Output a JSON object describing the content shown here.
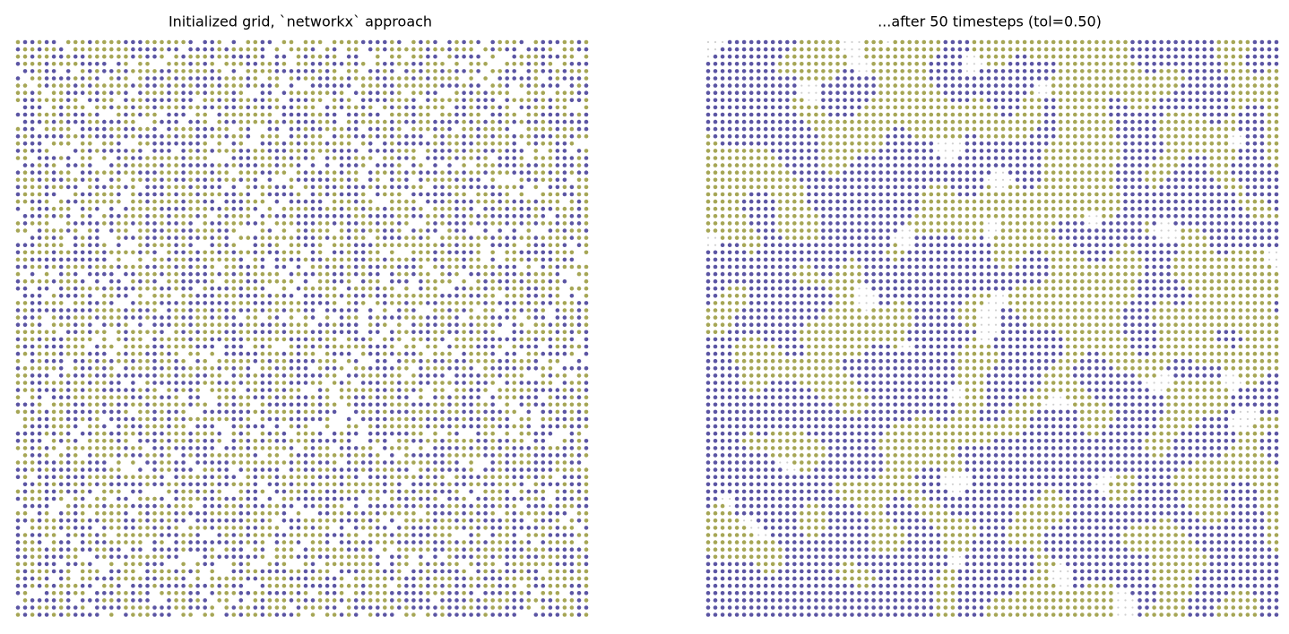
{
  "panels": [
    {
      "title": "Initialized grid, `networkx` approach"
    },
    {
      "title": "...after 50 timesteps (tol=0.50)"
    }
  ]
}
